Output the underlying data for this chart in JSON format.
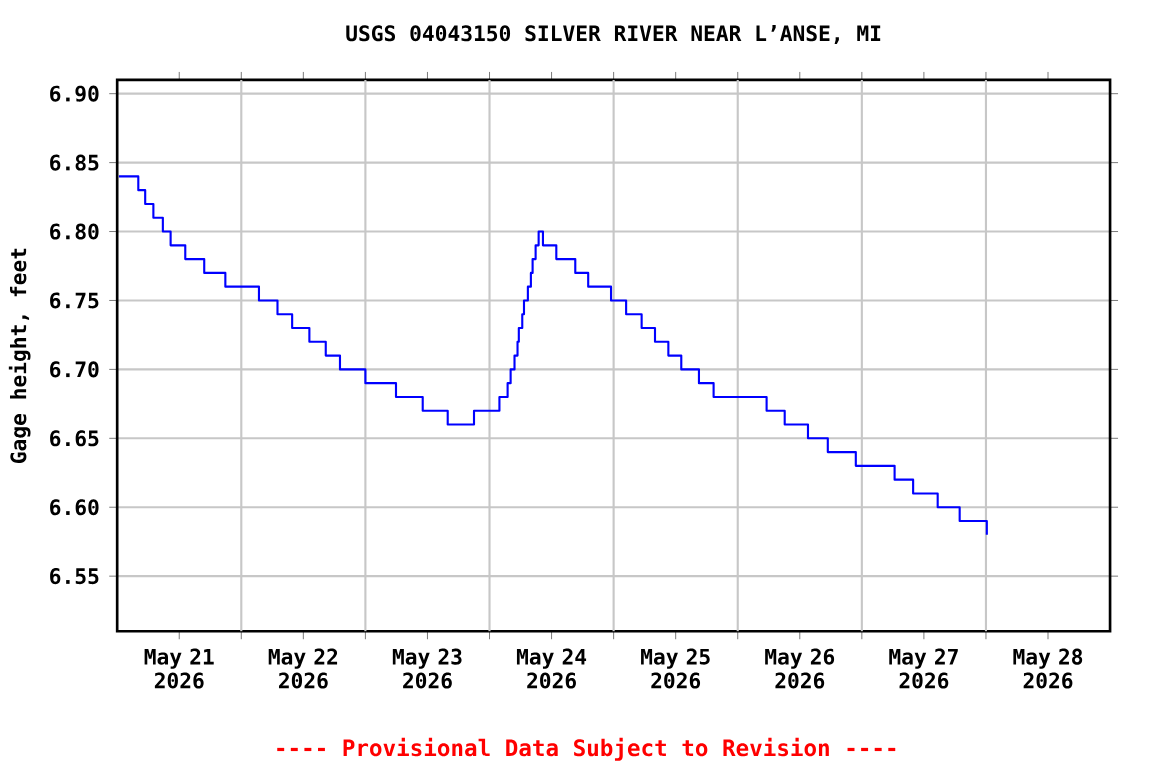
{
  "chart_data": {
    "type": "step",
    "title": "USGS 04043150 SILVER RIVER NEAR L’ANSE, MI",
    "ylabel": "Gage height, feet",
    "annotations": [
      "---- Provisional Data Subject to Revision ----"
    ],
    "xlim": [
      "2026-05-21T00:00",
      "2026-05-29T00:00"
    ],
    "xticks": [
      {
        "value": "2026-05-21T12:00",
        "label": "May 21 2026"
      },
      {
        "value": "2026-05-22T00:00",
        "label": null
      },
      {
        "value": "2026-05-22T12:00",
        "label": "May 22 2026"
      },
      {
        "value": "2026-05-23T00:00",
        "label": null
      },
      {
        "value": "2026-05-23T12:00",
        "label": "May 23 2026"
      },
      {
        "value": "2026-05-24T00:00",
        "label": null
      },
      {
        "value": "2026-05-24T12:00",
        "label": "May 24 2026"
      },
      {
        "value": "2026-05-25T00:00",
        "label": null
      },
      {
        "value": "2026-05-25T12:00",
        "label": "May 25 2026"
      },
      {
        "value": "2026-05-26T00:00",
        "label": null
      },
      {
        "value": "2026-05-26T12:00",
        "label": "May 26 2026"
      },
      {
        "value": "2026-05-27T00:00",
        "label": null
      },
      {
        "value": "2026-05-27T12:00",
        "label": "May 27 2026"
      },
      {
        "value": "2026-05-28T00:00",
        "label": null
      },
      {
        "value": "2026-05-28T12:00",
        "label": "May 28 2026"
      }
    ],
    "ylim": [
      6.51,
      6.91
    ],
    "yticks": [
      {
        "value": 6.55,
        "label": "6.55"
      },
      {
        "value": 6.6,
        "label": "6.60"
      },
      {
        "value": 6.65,
        "label": "6.65"
      },
      {
        "value": 6.7,
        "label": "6.70"
      },
      {
        "value": 6.75,
        "label": "6.75"
      },
      {
        "value": 6.8,
        "label": "6.80"
      },
      {
        "value": 6.85,
        "label": "6.85"
      },
      {
        "value": 6.9,
        "label": "6.90"
      }
    ],
    "grid": true,
    "series": [
      {
        "color": "#0000ff",
        "x": [
          "2026-05-21T00:20",
          "2026-05-21T04:05",
          "2026-05-21T05:25",
          "2026-05-21T07:00",
          "2026-05-21T08:50",
          "2026-05-21T10:20",
          "2026-05-21T13:10",
          "2026-05-21T16:50",
          "2026-05-21T20:55",
          "2026-05-22T03:25",
          "2026-05-22T07:00",
          "2026-05-22T09:50",
          "2026-05-22T13:10",
          "2026-05-22T16:20",
          "2026-05-22T19:05",
          "2026-05-23T00:00",
          "2026-05-23T05:55",
          "2026-05-23T11:05",
          "2026-05-23T15:55",
          "2026-05-23T21:00",
          "2026-05-24T01:55",
          "2026-05-24T03:30",
          "2026-05-24T04:05",
          "2026-05-24T04:50",
          "2026-05-24T05:25",
          "2026-05-24T05:40",
          "2026-05-24T06:20",
          "2026-05-24T06:40",
          "2026-05-24T07:25",
          "2026-05-24T08:00",
          "2026-05-24T08:20",
          "2026-05-24T08:55",
          "2026-05-24T09:30",
          "2026-05-24T10:20",
          "2026-05-24T12:55",
          "2026-05-24T16:35",
          "2026-05-24T19:05",
          "2026-05-24T23:30",
          "2026-05-25T02:25",
          "2026-05-25T05:25",
          "2026-05-25T08:00",
          "2026-05-25T10:35",
          "2026-05-25T13:05",
          "2026-05-25T16:30",
          "2026-05-25T19:20",
          "2026-05-26T05:35",
          "2026-05-26T09:05",
          "2026-05-26T13:35",
          "2026-05-26T17:25",
          "2026-05-26T22:50",
          "2026-05-27T06:20",
          "2026-05-27T09:55",
          "2026-05-27T14:40",
          "2026-05-27T18:55",
          "2026-05-28T00:00",
          "2026-05-28T00:10"
        ],
        "values": [
          6.84,
          6.83,
          6.82,
          6.81,
          6.8,
          6.79,
          6.78,
          6.77,
          6.76,
          6.75,
          6.74,
          6.73,
          6.72,
          6.71,
          6.7,
          6.69,
          6.68,
          6.67,
          6.66,
          6.67,
          6.68,
          6.69,
          6.7,
          6.71,
          6.72,
          6.73,
          6.74,
          6.75,
          6.76,
          6.77,
          6.78,
          6.79,
          6.8,
          6.79,
          6.78,
          6.77,
          6.76,
          6.75,
          6.74,
          6.73,
          6.72,
          6.71,
          6.7,
          6.69,
          6.68,
          6.67,
          6.66,
          6.65,
          6.64,
          6.63,
          6.62,
          6.61,
          6.6,
          6.59,
          6.59,
          6.58
        ]
      }
    ]
  }
}
